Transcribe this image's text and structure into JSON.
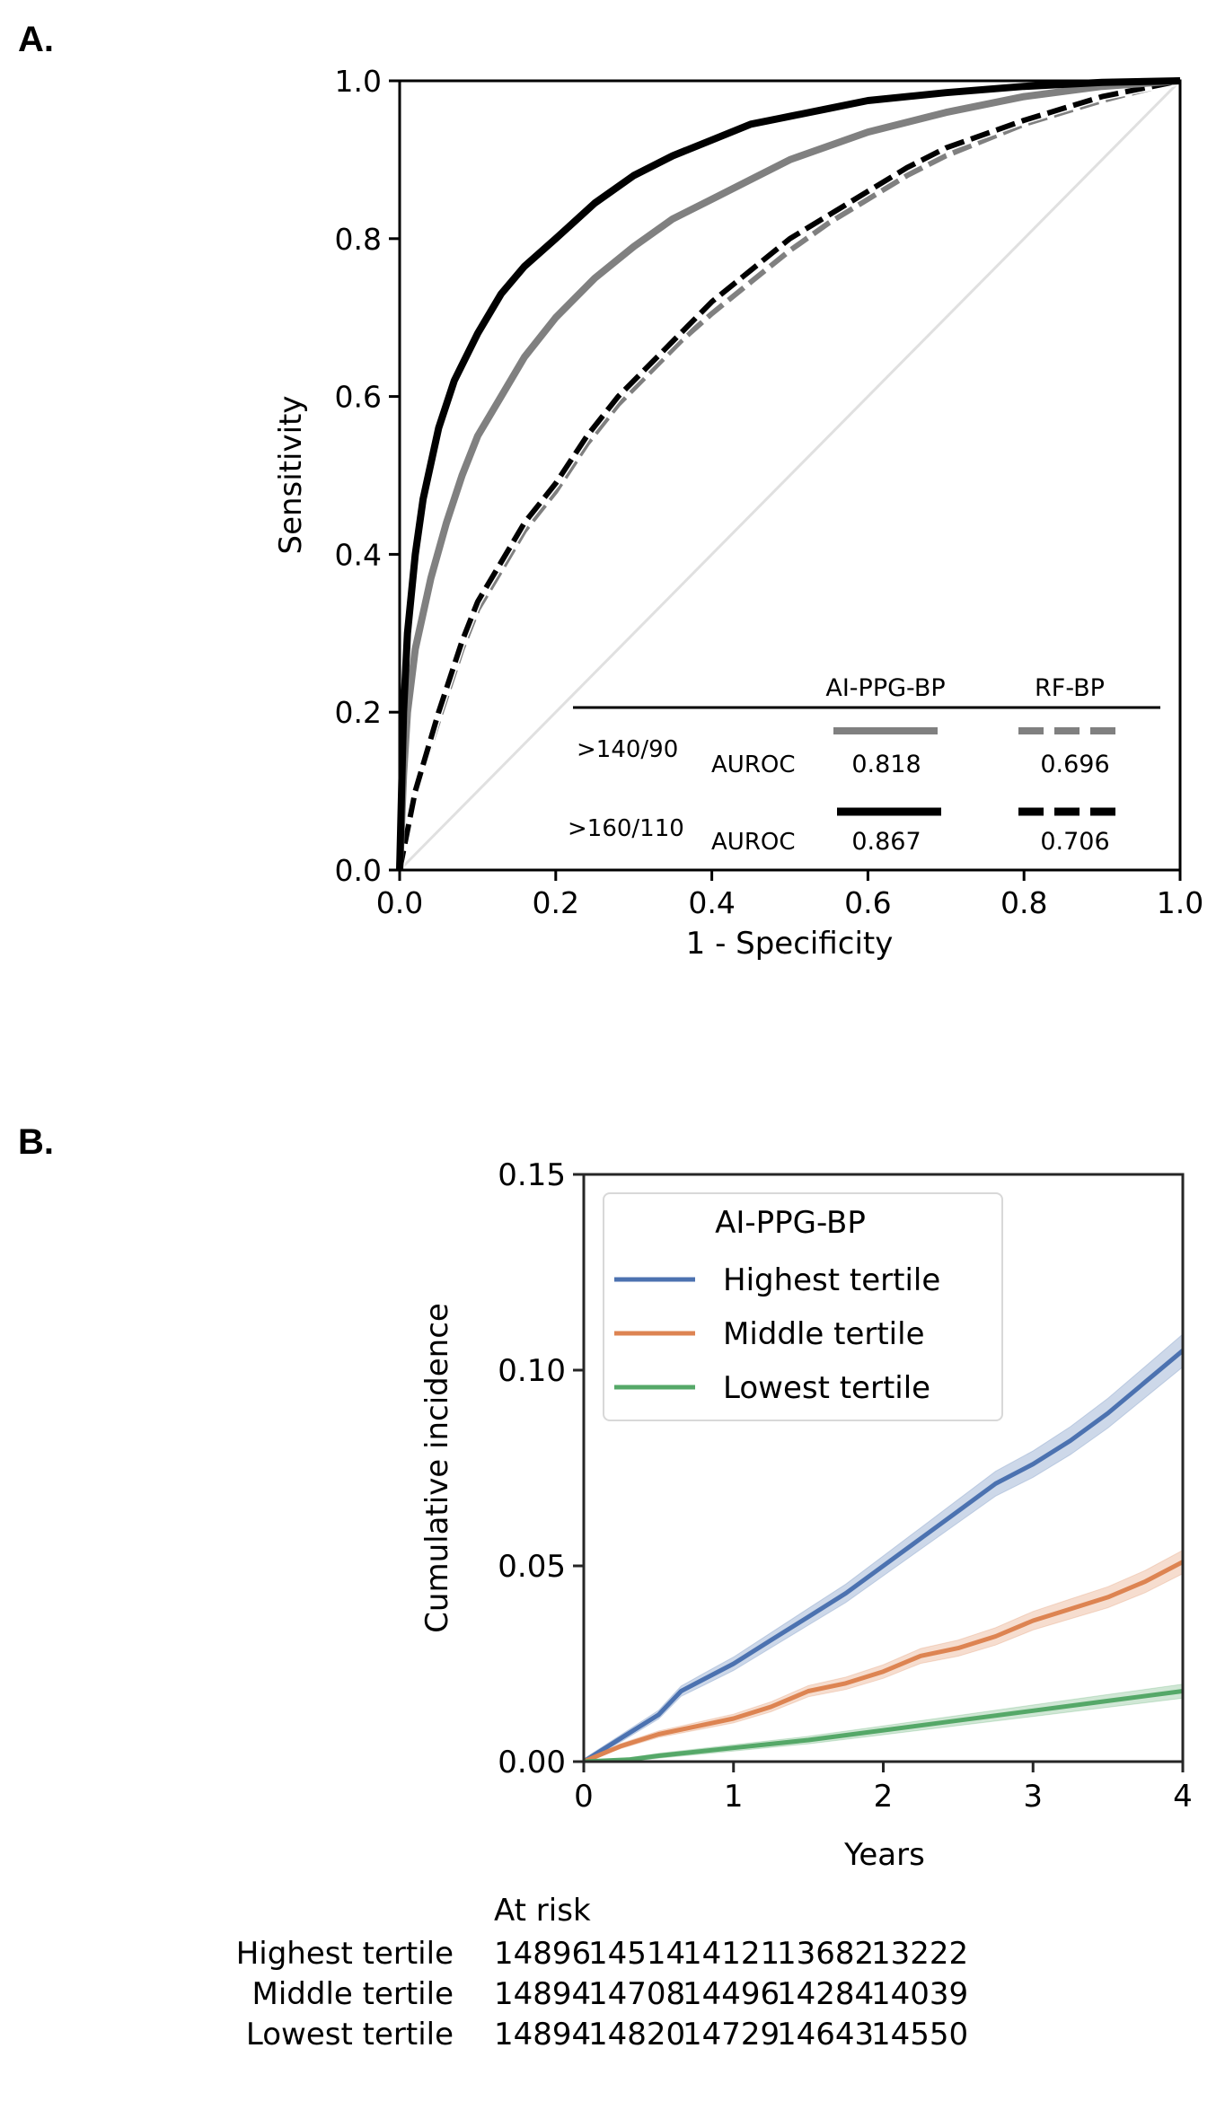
{
  "panels": {
    "a_label": "A.",
    "b_label": "B."
  },
  "chart_data": [
    {
      "id": "A",
      "type": "line",
      "title": "",
      "xlabel": "1 - Specificity",
      "ylabel": "Sensitivity",
      "xlim": [
        0.0,
        1.0
      ],
      "ylim": [
        0.0,
        1.0
      ],
      "xticks": [
        "0.0",
        "0.2",
        "0.4",
        "0.6",
        "0.8",
        "1.0"
      ],
      "yticks": [
        "0.0",
        "0.2",
        "0.4",
        "0.6",
        "0.8",
        "1.0"
      ],
      "grid": false,
      "reference_line": {
        "name": "chance",
        "x": [
          0,
          1
        ],
        "y": [
          0,
          1
        ],
        "color": "#e0e0e0"
      },
      "series": [
        {
          "name": "AI-PPG-BP >160/110",
          "color": "#000000",
          "style": "solid",
          "auroc": "0.867",
          "x": [
            0,
            0.005,
            0.01,
            0.02,
            0.03,
            0.05,
            0.07,
            0.1,
            0.13,
            0.16,
            0.2,
            0.25,
            0.3,
            0.35,
            0.4,
            0.45,
            0.5,
            0.55,
            0.6,
            0.7,
            0.8,
            0.9,
            1.0
          ],
          "y": [
            0,
            0.2,
            0.3,
            0.4,
            0.47,
            0.56,
            0.62,
            0.68,
            0.73,
            0.765,
            0.8,
            0.845,
            0.88,
            0.905,
            0.925,
            0.945,
            0.955,
            0.965,
            0.975,
            0.985,
            0.993,
            0.998,
            1.0
          ]
        },
        {
          "name": "AI-PPG-BP >140/90",
          "color": "#808080",
          "style": "solid",
          "auroc": "0.818",
          "x": [
            0,
            0.005,
            0.01,
            0.02,
            0.04,
            0.06,
            0.08,
            0.1,
            0.13,
            0.16,
            0.2,
            0.25,
            0.3,
            0.35,
            0.4,
            0.45,
            0.5,
            0.6,
            0.7,
            0.8,
            0.9,
            1.0
          ],
          "y": [
            0,
            0.12,
            0.2,
            0.28,
            0.37,
            0.44,
            0.5,
            0.55,
            0.6,
            0.65,
            0.7,
            0.75,
            0.79,
            0.825,
            0.85,
            0.875,
            0.9,
            0.935,
            0.96,
            0.98,
            0.993,
            1.0
          ]
        },
        {
          "name": "RF-BP >160/110",
          "color": "#000000",
          "style": "dashed",
          "auroc": "0.706",
          "x": [
            0,
            0.02,
            0.05,
            0.08,
            0.1,
            0.13,
            0.16,
            0.2,
            0.24,
            0.28,
            0.32,
            0.36,
            0.4,
            0.45,
            0.5,
            0.55,
            0.6,
            0.65,
            0.7,
            0.8,
            0.9,
            1.0
          ],
          "y": [
            0,
            0.1,
            0.2,
            0.29,
            0.34,
            0.39,
            0.44,
            0.49,
            0.55,
            0.6,
            0.64,
            0.68,
            0.72,
            0.76,
            0.8,
            0.83,
            0.86,
            0.89,
            0.915,
            0.95,
            0.98,
            1.0
          ]
        },
        {
          "name": "RF-BP >140/90",
          "color": "#808080",
          "style": "dashed",
          "auroc": "0.696",
          "x": [
            0,
            0.02,
            0.05,
            0.08,
            0.1,
            0.13,
            0.16,
            0.2,
            0.24,
            0.28,
            0.32,
            0.36,
            0.4,
            0.45,
            0.5,
            0.55,
            0.6,
            0.65,
            0.7,
            0.8,
            0.9,
            1.0
          ],
          "y": [
            0,
            0.1,
            0.19,
            0.28,
            0.33,
            0.38,
            0.43,
            0.48,
            0.54,
            0.59,
            0.63,
            0.67,
            0.705,
            0.745,
            0.785,
            0.82,
            0.85,
            0.88,
            0.905,
            0.945,
            0.975,
            1.0
          ]
        }
      ],
      "table_legend": {
        "col_headers": [
          "AI-PPG-BP",
          "RF-BP"
        ],
        "rows": [
          {
            "threshold": ">140/90",
            "metric": "AUROC",
            "ai_value": "0.818",
            "rf_value": "0.696",
            "color": "#808080"
          },
          {
            "threshold": ">160/110",
            "metric": "AUROC",
            "ai_value": "0.867",
            "rf_value": "0.706",
            "color": "#000000"
          }
        ]
      }
    },
    {
      "id": "B",
      "type": "line",
      "title": "",
      "xlabel": "Years",
      "ylabel": "Cumulative incidence",
      "xlim": [
        0,
        4
      ],
      "ylim": [
        0.0,
        0.15
      ],
      "xticks": [
        "0",
        "1",
        "2",
        "3",
        "4"
      ],
      "yticks": [
        "0.00",
        "0.05",
        "0.10",
        "0.15"
      ],
      "grid": false,
      "legend": {
        "title": "AI-PPG-BP",
        "placement": "top-left"
      },
      "series": [
        {
          "name": "Highest tertile",
          "color": "#4c72b0",
          "x": [
            0,
            0.25,
            0.5,
            0.65,
            0.8,
            1.0,
            1.25,
            1.5,
            1.75,
            2.0,
            2.25,
            2.5,
            2.75,
            3.0,
            3.25,
            3.5,
            3.75,
            4.0
          ],
          "y": [
            0,
            0.006,
            0.012,
            0.018,
            0.021,
            0.025,
            0.031,
            0.037,
            0.043,
            0.05,
            0.057,
            0.064,
            0.071,
            0.076,
            0.082,
            0.089,
            0.097,
            0.105
          ],
          "ci_halfwidth": 0.0035
        },
        {
          "name": "Middle tertile",
          "color": "#dd8452",
          "x": [
            0,
            0.25,
            0.5,
            0.75,
            1.0,
            1.25,
            1.5,
            1.75,
            2.0,
            2.25,
            2.5,
            2.75,
            3.0,
            3.25,
            3.5,
            3.75,
            4.0
          ],
          "y": [
            0,
            0.004,
            0.007,
            0.009,
            0.011,
            0.014,
            0.018,
            0.02,
            0.023,
            0.027,
            0.029,
            0.032,
            0.036,
            0.039,
            0.042,
            0.046,
            0.051
          ],
          "ci_halfwidth": 0.0025
        },
        {
          "name": "Lowest tertile",
          "color": "#55a868",
          "x": [
            0,
            0.3,
            0.5,
            1.0,
            1.5,
            2.0,
            2.5,
            3.0,
            3.5,
            4.0
          ],
          "y": [
            0,
            0.0005,
            0.0015,
            0.0035,
            0.0055,
            0.008,
            0.0105,
            0.013,
            0.0155,
            0.018
          ],
          "ci_halfwidth": 0.0015
        }
      ],
      "at_risk": {
        "title": "At risk",
        "rows": [
          {
            "label": "Highest tertile",
            "values": [
              "14896",
              "14514",
              "14121",
              "13682",
              "13222"
            ]
          },
          {
            "label": "Middle tertile",
            "values": [
              "14894",
              "14708",
              "14496",
              "14284",
              "14039"
            ]
          },
          {
            "label": "Lowest tertile",
            "values": [
              "14894",
              "14820",
              "14729",
              "14643",
              "14550"
            ]
          }
        ]
      }
    }
  ]
}
